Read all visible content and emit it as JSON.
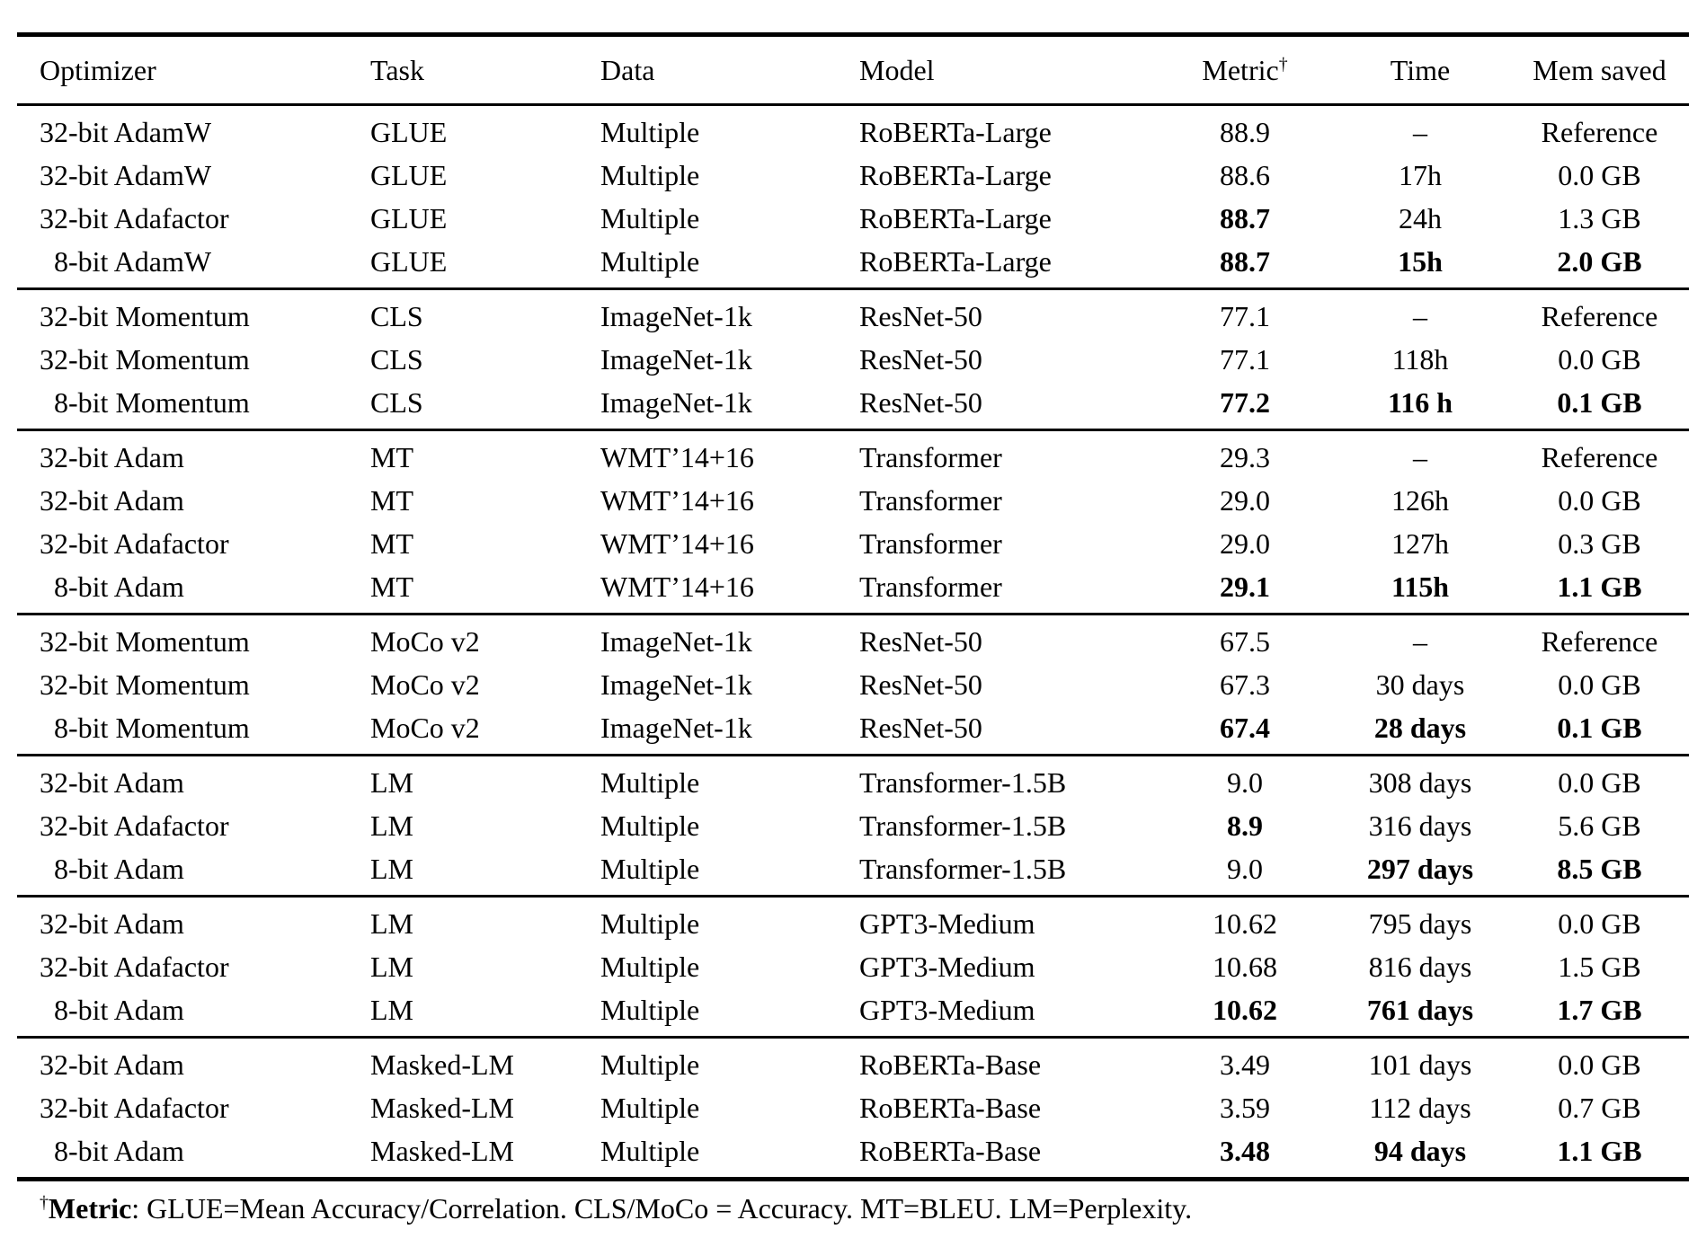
{
  "page": {
    "background": "#ffffff",
    "text_color": "#000000"
  },
  "table": {
    "columns": [
      {
        "label": "Optimizer"
      },
      {
        "label": "Task"
      },
      {
        "label": "Data"
      },
      {
        "label": "Model"
      },
      {
        "label": "Metric",
        "sup": "†"
      },
      {
        "label": "Time"
      },
      {
        "label": "Mem saved"
      }
    ],
    "groups": [
      {
        "rows": [
          {
            "optimizer": {
              "num": "32",
              "rest": "-bit AdamW"
            },
            "task": "GLUE",
            "data": "Multiple",
            "model": "RoBERTa-Large",
            "metric": {
              "text": "88.9",
              "bold": false
            },
            "time": {
              "text": "–",
              "bold": false
            },
            "mem": {
              "text": "Reference",
              "bold": false
            }
          },
          {
            "optimizer": {
              "num": "32",
              "rest": "-bit AdamW"
            },
            "task": "GLUE",
            "data": "Multiple",
            "model": "RoBERTa-Large",
            "metric": {
              "text": "88.6",
              "bold": false
            },
            "time": {
              "text": "17h",
              "bold": false
            },
            "mem": {
              "text": "0.0 GB",
              "bold": false
            }
          },
          {
            "optimizer": {
              "num": "32",
              "rest": "-bit Adafactor"
            },
            "task": "GLUE",
            "data": "Multiple",
            "model": "RoBERTa-Large",
            "metric": {
              "text": "88.7",
              "bold": true
            },
            "time": {
              "text": "24h",
              "bold": false
            },
            "mem": {
              "text": "1.3 GB",
              "bold": false
            }
          },
          {
            "optimizer": {
              "num": "8",
              "rest": "-bit AdamW"
            },
            "task": "GLUE",
            "data": "Multiple",
            "model": "RoBERTa-Large",
            "metric": {
              "text": "88.7",
              "bold": true
            },
            "time": {
              "text": "15h",
              "bold": true
            },
            "mem": {
              "text": "2.0 GB",
              "bold": true
            }
          }
        ]
      },
      {
        "rows": [
          {
            "optimizer": {
              "num": "32",
              "rest": "-bit Momentum"
            },
            "task": "CLS",
            "data": "ImageNet-1k",
            "model": "ResNet-50",
            "metric": {
              "text": "77.1",
              "bold": false
            },
            "time": {
              "text": "–",
              "bold": false
            },
            "mem": {
              "text": "Reference",
              "bold": false
            }
          },
          {
            "optimizer": {
              "num": "32",
              "rest": "-bit Momentum"
            },
            "task": "CLS",
            "data": "ImageNet-1k",
            "model": "ResNet-50",
            "metric": {
              "text": "77.1",
              "bold": false
            },
            "time": {
              "text": "118h",
              "bold": false
            },
            "mem": {
              "text": "0.0 GB",
              "bold": false
            }
          },
          {
            "optimizer": {
              "num": "8",
              "rest": "-bit Momentum"
            },
            "task": "CLS",
            "data": "ImageNet-1k",
            "model": "ResNet-50",
            "metric": {
              "text": "77.2",
              "bold": true
            },
            "time": {
              "text": "116 h",
              "bold": true
            },
            "mem": {
              "text": "0.1 GB",
              "bold": true
            }
          }
        ]
      },
      {
        "rows": [
          {
            "optimizer": {
              "num": "32",
              "rest": "-bit Adam"
            },
            "task": "MT",
            "data": "WMT’14+16",
            "model": "Transformer",
            "metric": {
              "text": "29.3",
              "bold": false
            },
            "time": {
              "text": "–",
              "bold": false
            },
            "mem": {
              "text": "Reference",
              "bold": false
            }
          },
          {
            "optimizer": {
              "num": "32",
              "rest": "-bit Adam"
            },
            "task": "MT",
            "data": "WMT’14+16",
            "model": "Transformer",
            "metric": {
              "text": "29.0",
              "bold": false
            },
            "time": {
              "text": "126h",
              "bold": false
            },
            "mem": {
              "text": "0.0 GB",
              "bold": false
            }
          },
          {
            "optimizer": {
              "num": "32",
              "rest": "-bit Adafactor"
            },
            "task": "MT",
            "data": "WMT’14+16",
            "model": "Transformer",
            "metric": {
              "text": "29.0",
              "bold": false
            },
            "time": {
              "text": "127h",
              "bold": false
            },
            "mem": {
              "text": "0.3 GB",
              "bold": false
            }
          },
          {
            "optimizer": {
              "num": "8",
              "rest": "-bit Adam"
            },
            "task": "MT",
            "data": "WMT’14+16",
            "model": "Transformer",
            "metric": {
              "text": "29.1",
              "bold": true
            },
            "time": {
              "text": "115h",
              "bold": true
            },
            "mem": {
              "text": "1.1 GB",
              "bold": true
            }
          }
        ]
      },
      {
        "rows": [
          {
            "optimizer": {
              "num": "32",
              "rest": "-bit Momentum"
            },
            "task": "MoCo v2",
            "data": "ImageNet-1k",
            "model": "ResNet-50",
            "metric": {
              "text": "67.5",
              "bold": false
            },
            "time": {
              "text": "–",
              "bold": false
            },
            "mem": {
              "text": "Reference",
              "bold": false
            }
          },
          {
            "optimizer": {
              "num": "32",
              "rest": "-bit Momentum"
            },
            "task": "MoCo v2",
            "data": "ImageNet-1k",
            "model": "ResNet-50",
            "metric": {
              "text": "67.3",
              "bold": false
            },
            "time": {
              "text": "30 days",
              "bold": false
            },
            "mem": {
              "text": "0.0 GB",
              "bold": false
            }
          },
          {
            "optimizer": {
              "num": "8",
              "rest": "-bit Momentum"
            },
            "task": "MoCo v2",
            "data": "ImageNet-1k",
            "model": "ResNet-50",
            "metric": {
              "text": "67.4",
              "bold": true
            },
            "time": {
              "text": "28 days",
              "bold": true
            },
            "mem": {
              "text": "0.1 GB",
              "bold": true
            }
          }
        ]
      },
      {
        "rows": [
          {
            "optimizer": {
              "num": "32",
              "rest": "-bit Adam"
            },
            "task": "LM",
            "data": "Multiple",
            "model": "Transformer-1.5B",
            "metric": {
              "text": "9.0",
              "bold": false
            },
            "time": {
              "text": "308 days",
              "bold": false
            },
            "mem": {
              "text": "0.0 GB",
              "bold": false
            }
          },
          {
            "optimizer": {
              "num": "32",
              "rest": "-bit Adafactor"
            },
            "task": "LM",
            "data": "Multiple",
            "model": "Transformer-1.5B",
            "metric": {
              "text": "8.9",
              "bold": true
            },
            "time": {
              "text": "316 days",
              "bold": false
            },
            "mem": {
              "text": "5.6 GB",
              "bold": false
            }
          },
          {
            "optimizer": {
              "num": "8",
              "rest": "-bit Adam"
            },
            "task": "LM",
            "data": "Multiple",
            "model": "Transformer-1.5B",
            "metric": {
              "text": "9.0",
              "bold": false
            },
            "time": {
              "text": "297 days",
              "bold": true
            },
            "mem": {
              "text": "8.5 GB",
              "bold": true
            }
          }
        ]
      },
      {
        "rows": [
          {
            "optimizer": {
              "num": "32",
              "rest": "-bit Adam"
            },
            "task": "LM",
            "data": "Multiple",
            "model": "GPT3-Medium",
            "metric": {
              "text": "10.62",
              "bold": false
            },
            "time": {
              "text": "795 days",
              "bold": false
            },
            "mem": {
              "text": "0.0 GB",
              "bold": false
            }
          },
          {
            "optimizer": {
              "num": "32",
              "rest": "-bit Adafactor"
            },
            "task": "LM",
            "data": "Multiple",
            "model": "GPT3-Medium",
            "metric": {
              "text": "10.68",
              "bold": false
            },
            "time": {
              "text": "816 days",
              "bold": false
            },
            "mem": {
              "text": "1.5 GB",
              "bold": false
            }
          },
          {
            "optimizer": {
              "num": "8",
              "rest": "-bit Adam"
            },
            "task": "LM",
            "data": "Multiple",
            "model": "GPT3-Medium",
            "metric": {
              "text": "10.62",
              "bold": true
            },
            "time": {
              "text": "761 days",
              "bold": true
            },
            "mem": {
              "text": "1.7 GB",
              "bold": true
            }
          }
        ]
      },
      {
        "rows": [
          {
            "optimizer": {
              "num": "32",
              "rest": "-bit Adam"
            },
            "task": "Masked-LM",
            "data": "Multiple",
            "model": "RoBERTa-Base",
            "metric": {
              "text": "3.49",
              "bold": false
            },
            "time": {
              "text": "101 days",
              "bold": false
            },
            "mem": {
              "text": "0.0 GB",
              "bold": false
            }
          },
          {
            "optimizer": {
              "num": "32",
              "rest": "-bit Adafactor"
            },
            "task": "Masked-LM",
            "data": "Multiple",
            "model": "RoBERTa-Base",
            "metric": {
              "text": "3.59",
              "bold": false
            },
            "time": {
              "text": "112 days",
              "bold": false
            },
            "mem": {
              "text": "0.7 GB",
              "bold": false
            }
          },
          {
            "optimizer": {
              "num": "8",
              "rest": "-bit Adam"
            },
            "task": "Masked-LM",
            "data": "Multiple",
            "model": "RoBERTa-Base",
            "metric": {
              "text": "3.48",
              "bold": true
            },
            "time": {
              "text": "94 days",
              "bold": true
            },
            "mem": {
              "text": "1.1 GB",
              "bold": true
            }
          }
        ]
      }
    ]
  },
  "footnote": {
    "sup": "†",
    "term": "Metric",
    "text": ": GLUE=Mean Accuracy/Correlation. CLS/MoCo = Accuracy. MT=BLEU. LM=Perplexity."
  }
}
